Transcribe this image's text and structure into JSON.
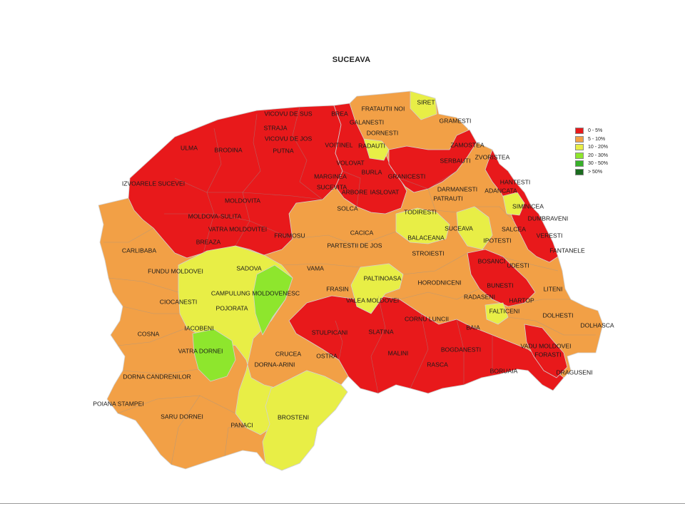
{
  "title": "SUCEAVA",
  "legend": [
    {
      "label": "0 - 5%",
      "color": "#e8191b"
    },
    {
      "label": "5 - 10%",
      "color": "#f2a046"
    },
    {
      "label": "10 - 20%",
      "color": "#e8ee46"
    },
    {
      "label": "20 - 30%",
      "color": "#8ee62d"
    },
    {
      "label": "30 - 50%",
      "color": "#38b12a"
    },
    {
      "label": "> 50%",
      "color": "#1b6b1f"
    }
  ],
  "localities": [
    "VICOVU DE SUS",
    "BREA",
    "FRATAUTII NOI",
    "SIRET",
    "GRAMESTI",
    "STRAJA",
    "VICOVU DE JOS",
    "GALANESTI",
    "DORNESTI",
    "ULMA",
    "BRODINA",
    "PUTNA",
    "VOITINEL",
    "RADAUTI",
    "ZAMOSTEA",
    "ZVORISTEA",
    "SERBAUTI",
    "VOLOVAT",
    "BURLA",
    "GRANICESTI",
    "HANTESTI",
    "ADANCATA",
    "IZVOARELE SUCEVEI",
    "MARGINEA",
    "SUCEVITA",
    "ARBORE",
    "IASLOVAT",
    "DARMANESTI",
    "PATRAUTI",
    "MOLDOVITA",
    "SOLCA",
    "TODIRESTI",
    "SIMINICEA",
    "DUMBRAVENI",
    "MOLDOVA-SULITA",
    "VATRA MOLDOVITEI",
    "FRUMOSU",
    "CACICA",
    "SUCEAVA",
    "SALCEA",
    "VERESTI",
    "BREAZA",
    "BALACEANA",
    "IPOTESTI",
    "FANTANELE",
    "CARLIBABA",
    "PARTESTII DE JOS",
    "STROIESTI",
    "BOSANCI",
    "UDESTI",
    "SADOVA",
    "VAMA",
    "FUNDU MOLDOVEI",
    "PALTINOASA",
    "HORODNICENI",
    "BUNESTI",
    "CAMPULUNG MOLDOVENESC",
    "FRASIN",
    "LITENI",
    "POJORATA",
    "CIOCANESTI",
    "VALEA MOLDOVEI",
    "RADASENI",
    "HARTOP",
    "CORNU LUNCII",
    "FALTICENI",
    "DOLHESTI",
    "IACOBENI",
    "DOLHASCA",
    "STULPICANI",
    "SLATINA",
    "BAIA",
    "COSNA",
    "VADU MOLDOVEI",
    "FORASTI",
    "VATRA DORNEI",
    "MALINI",
    "BOGDANESTI",
    "CRUCEA",
    "OSTRA",
    "DORNA-ARINI",
    "RASCA",
    "DORNA CANDRENILOR",
    "BORUAIA",
    "DRAGUSENI",
    "POIANA STAMPEI",
    "SARU DORNEI",
    "BROSTENI",
    "PANACI"
  ]
}
